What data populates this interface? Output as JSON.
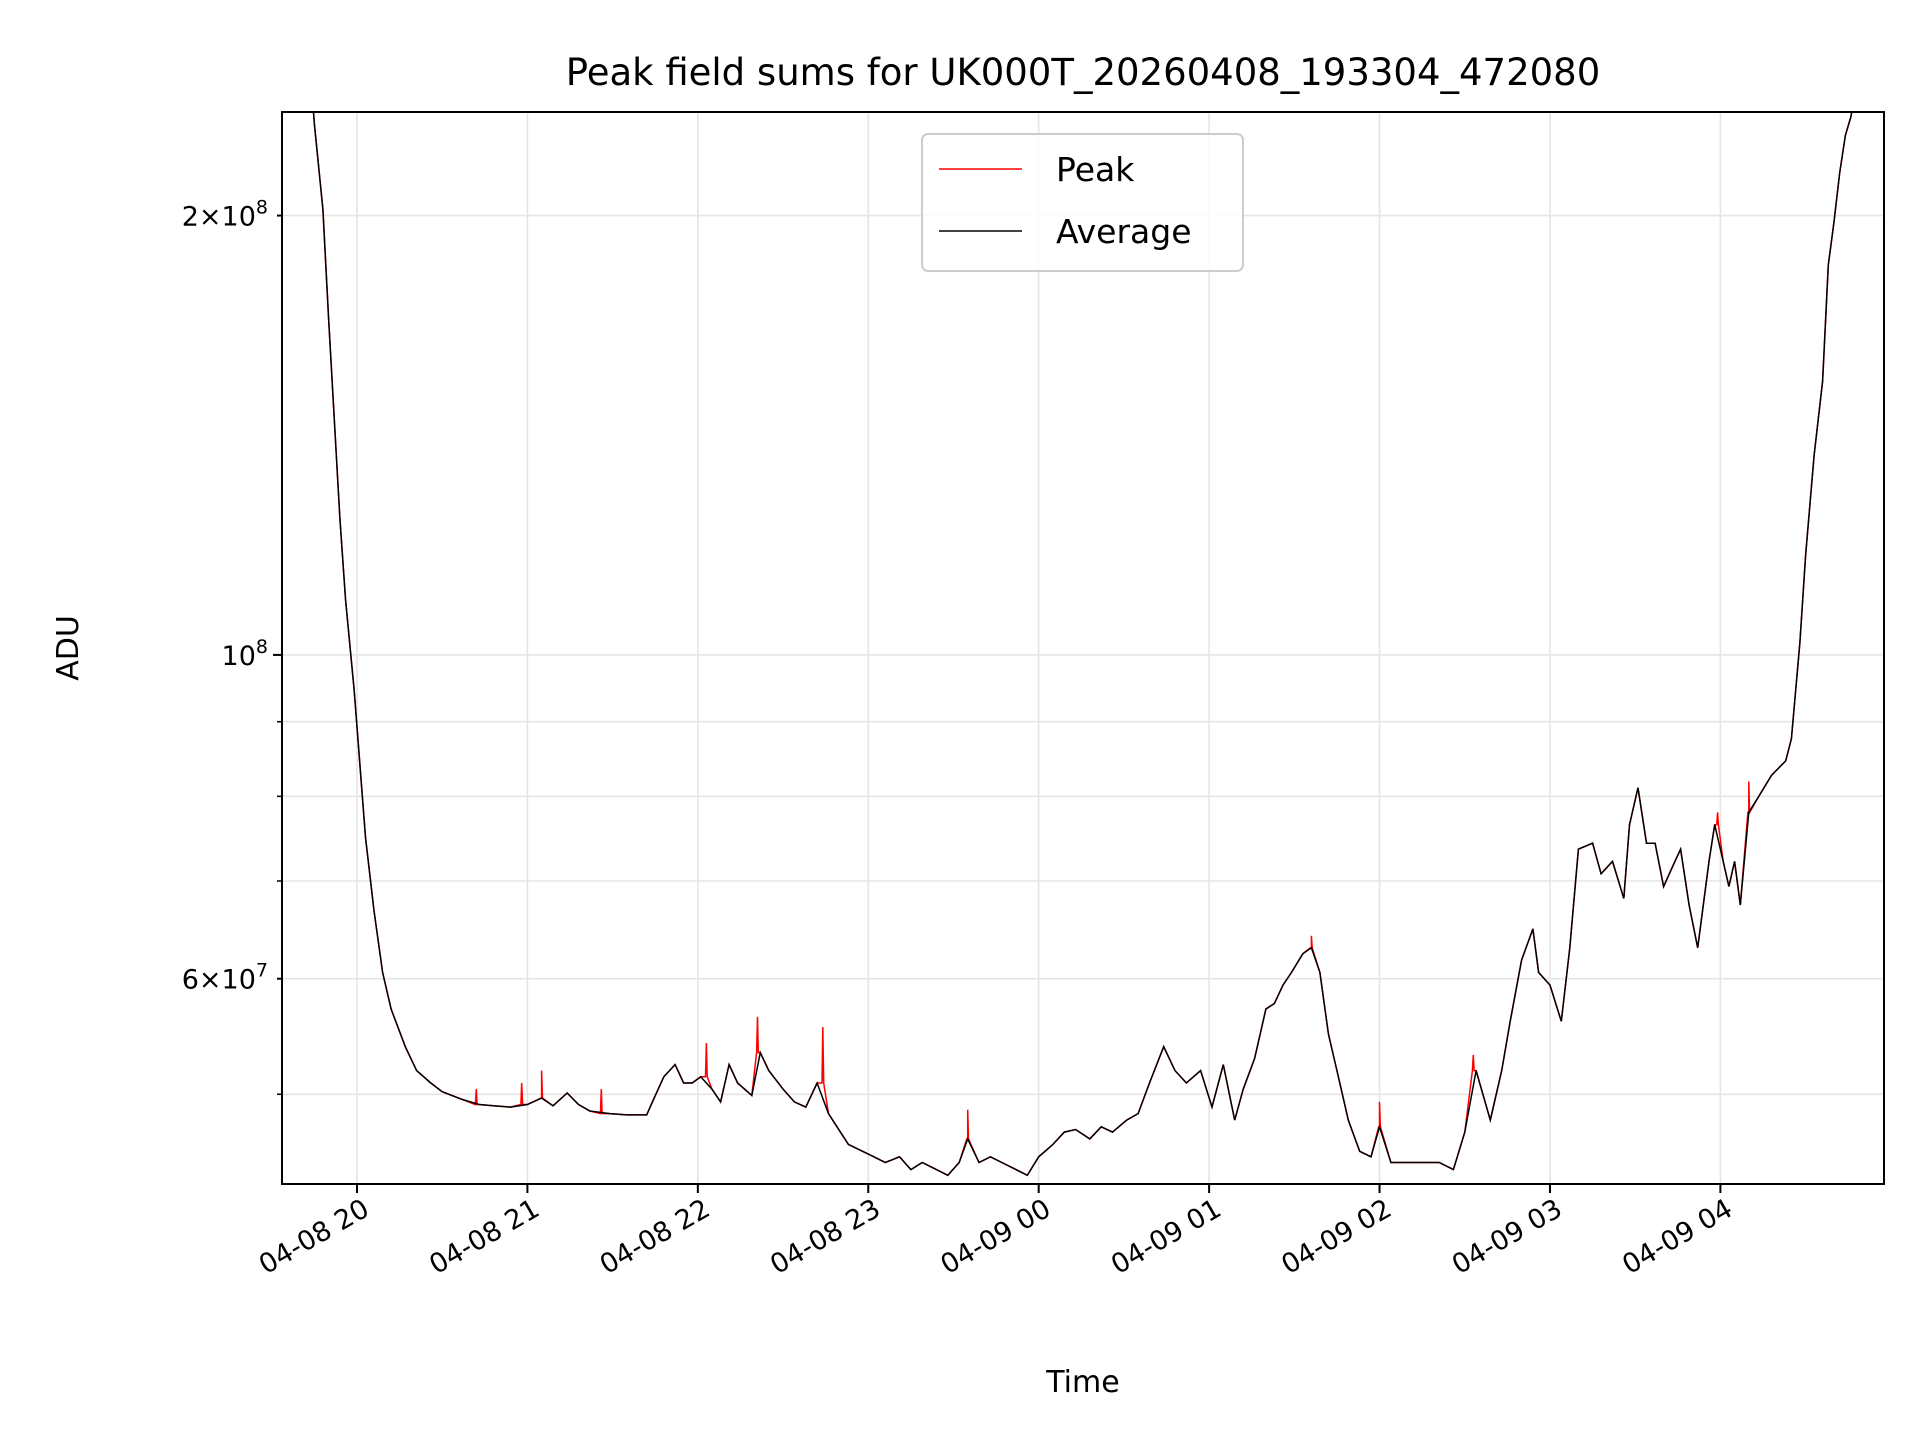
{
  "chart_data": {
    "type": "line",
    "title": "Peak field sums for UK000T_20260408_193304_472080",
    "xlabel": "Time",
    "ylabel": "ADU",
    "x_unit": "minutes since 04-08 20:00",
    "value_scale": 10000000,
    "xlim": [
      -26.4,
      537.6
    ],
    "ylim": [
      43400000,
      235500000
    ],
    "yscale": "log",
    "grid": true,
    "legend_position": "top-center",
    "x_ticks": [
      {
        "value": 0,
        "label": "04-08 20"
      },
      {
        "value": 60,
        "label": "04-08 21"
      },
      {
        "value": 120,
        "label": "04-08 22"
      },
      {
        "value": 180,
        "label": "04-08 23"
      },
      {
        "value": 240,
        "label": "04-09 00"
      },
      {
        "value": 300,
        "label": "04-09 01"
      },
      {
        "value": 360,
        "label": "04-09 02"
      },
      {
        "value": 420,
        "label": "04-09 03"
      },
      {
        "value": 480,
        "label": "04-09 04"
      }
    ],
    "y_ticks": [
      {
        "value": 200000000,
        "mant": "2",
        "exp": "8"
      },
      {
        "value": 100000000,
        "mant": "",
        "exp": "8"
      },
      {
        "value": 60000000,
        "mant": "6",
        "exp": "7"
      }
    ],
    "y_minor_unlabeled": [
      50000000,
      70000000,
      80000000,
      90000000
    ],
    "series": [
      {
        "name": "Peak",
        "color": "#ff0000",
        "spikes": [
          [
            42,
            5.04
          ],
          [
            58,
            5.09
          ],
          [
            65,
            5.19
          ],
          [
            86,
            5.04
          ],
          [
            123,
            5.42
          ],
          [
            141,
            5.65
          ],
          [
            164,
            5.56
          ],
          [
            215,
            4.88
          ],
          [
            336,
            6.42
          ],
          [
            360,
            4.94
          ],
          [
            393,
            5.32
          ],
          [
            479,
            7.8
          ],
          [
            490,
            8.19
          ]
        ]
      },
      {
        "name": "Average",
        "color": "#000000",
        "points": [
          [
            -26,
            26
          ],
          [
            -17,
            26
          ],
          [
            -15,
            23.1
          ],
          [
            -12,
            20.2
          ],
          [
            -10,
            17.0
          ],
          [
            -8,
            14.5
          ],
          [
            -6,
            12.4
          ],
          [
            -4,
            10.9
          ],
          [
            -1,
            9.47
          ],
          [
            1,
            8.43
          ],
          [
            3,
            7.5
          ],
          [
            6,
            6.68
          ],
          [
            9,
            6.06
          ],
          [
            12,
            5.72
          ],
          [
            17,
            5.39
          ],
          [
            21,
            5.19
          ],
          [
            26,
            5.09
          ],
          [
            30,
            5.02
          ],
          [
            37,
            4.96
          ],
          [
            43,
            4.92
          ],
          [
            48,
            4.91
          ],
          [
            54,
            4.9
          ],
          [
            60,
            4.92
          ],
          [
            65,
            4.97
          ],
          [
            69,
            4.91
          ],
          [
            74,
            5.01
          ],
          [
            78,
            4.92
          ],
          [
            82,
            4.87
          ],
          [
            89,
            4.85
          ],
          [
            95,
            4.84
          ],
          [
            102,
            4.84
          ],
          [
            104,
            4.94
          ],
          [
            108,
            5.14
          ],
          [
            112,
            5.24
          ],
          [
            115,
            5.09
          ],
          [
            118,
            5.09
          ],
          [
            121,
            5.14
          ],
          [
            125,
            5.04
          ],
          [
            128,
            4.94
          ],
          [
            131,
            5.24
          ],
          [
            134,
            5.09
          ],
          [
            139,
            4.99
          ],
          [
            142,
            5.34
          ],
          [
            145,
            5.19
          ],
          [
            150,
            5.04
          ],
          [
            154,
            4.94
          ],
          [
            158,
            4.9
          ],
          [
            162,
            5.09
          ],
          [
            166,
            4.85
          ],
          [
            169,
            4.75
          ],
          [
            173,
            4.62
          ],
          [
            178,
            4.57
          ],
          [
            182,
            4.53
          ],
          [
            186,
            4.49
          ],
          [
            191,
            4.53
          ],
          [
            195,
            4.44
          ],
          [
            199,
            4.49
          ],
          [
            204,
            4.44
          ],
          [
            208,
            4.4
          ],
          [
            212,
            4.49
          ],
          [
            215,
            4.66
          ],
          [
            219,
            4.49
          ],
          [
            223,
            4.53
          ],
          [
            227,
            4.49
          ],
          [
            232,
            4.44
          ],
          [
            236,
            4.4
          ],
          [
            240,
            4.53
          ],
          [
            245,
            4.62
          ],
          [
            249,
            4.71
          ],
          [
            253,
            4.73
          ],
          [
            258,
            4.66
          ],
          [
            262,
            4.75
          ],
          [
            266,
            4.71
          ],
          [
            271,
            4.8
          ],
          [
            275,
            4.85
          ],
          [
            279,
            5.09
          ],
          [
            284,
            5.39
          ],
          [
            288,
            5.19
          ],
          [
            292,
            5.09
          ],
          [
            297,
            5.19
          ],
          [
            301,
            4.9
          ],
          [
            305,
            5.24
          ],
          [
            309,
            4.8
          ],
          [
            312,
            5.04
          ],
          [
            316,
            5.29
          ],
          [
            320,
            5.72
          ],
          [
            323,
            5.77
          ],
          [
            326,
            5.94
          ],
          [
            329,
            6.06
          ],
          [
            333,
            6.24
          ],
          [
            336,
            6.3
          ],
          [
            339,
            6.06
          ],
          [
            342,
            5.5
          ],
          [
            346,
            5.09
          ],
          [
            349,
            4.8
          ],
          [
            353,
            4.57
          ],
          [
            357,
            4.53
          ],
          [
            360,
            4.75
          ],
          [
            364,
            4.49
          ],
          [
            368,
            4.49
          ],
          [
            373,
            4.49
          ],
          [
            377,
            4.49
          ],
          [
            381,
            4.49
          ],
          [
            386,
            4.44
          ],
          [
            390,
            4.71
          ],
          [
            394,
            5.19
          ],
          [
            399,
            4.8
          ],
          [
            403,
            5.19
          ],
          [
            406,
            5.61
          ],
          [
            410,
            6.18
          ],
          [
            414,
            6.49
          ],
          [
            416,
            6.06
          ],
          [
            420,
            5.94
          ],
          [
            424,
            5.61
          ],
          [
            427,
            6.3
          ],
          [
            430,
            7.36
          ],
          [
            435,
            7.43
          ],
          [
            438,
            7.08
          ],
          [
            442,
            7.22
          ],
          [
            446,
            6.81
          ],
          [
            448,
            7.65
          ],
          [
            451,
            8.11
          ],
          [
            454,
            7.43
          ],
          [
            457,
            7.43
          ],
          [
            460,
            6.94
          ],
          [
            464,
            7.22
          ],
          [
            466,
            7.36
          ],
          [
            469,
            6.74
          ],
          [
            472,
            6.3
          ],
          [
            476,
            7.22
          ],
          [
            478,
            7.65
          ],
          [
            481,
            7.22
          ],
          [
            483,
            6.94
          ],
          [
            485,
            7.22
          ],
          [
            487,
            6.74
          ],
          [
            490,
            7.8
          ],
          [
            494,
            8.03
          ],
          [
            498,
            8.27
          ],
          [
            503,
            8.46
          ],
          [
            505,
            8.76
          ],
          [
            508,
            10.2
          ],
          [
            510,
            11.7
          ],
          [
            513,
            13.7
          ],
          [
            516,
            15.4
          ],
          [
            518,
            18.5
          ],
          [
            520,
            19.8
          ],
          [
            522,
            21.4
          ],
          [
            524,
            22.7
          ],
          [
            526,
            23.4
          ],
          [
            529,
            26
          ],
          [
            538,
            26
          ]
        ]
      }
    ]
  }
}
